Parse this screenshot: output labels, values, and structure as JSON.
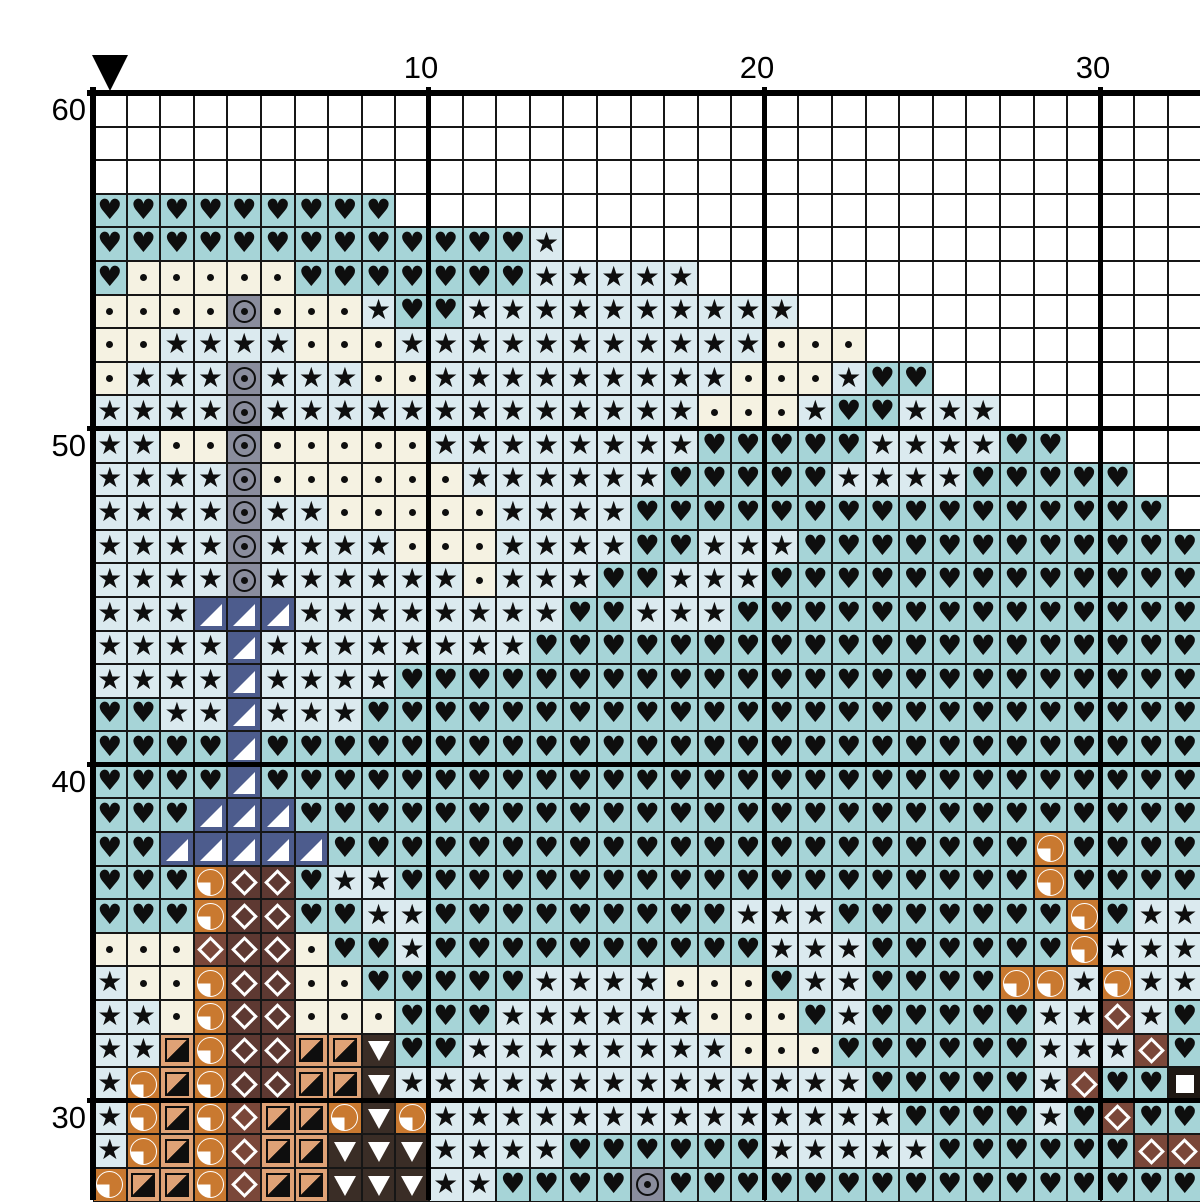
{
  "pattern": {
    "title": "cross-stitch pattern chart (cropped view)",
    "marker": {
      "glyph": "black-down-triangle",
      "column": 1
    },
    "ruler": {
      "top_labels": [
        {
          "text": "10",
          "boundary": 10
        },
        {
          "text": "20",
          "boundary": 20
        },
        {
          "text": "30",
          "boundary": 30
        }
      ],
      "left_labels": [
        {
          "text": "60",
          "row": 1
        },
        {
          "text": "50",
          "row": 11
        },
        {
          "text": "40",
          "row": 21
        },
        {
          "text": "30",
          "row": 31
        }
      ]
    },
    "legend": {
      ".": {
        "name": "empty",
        "bg": "#ffffff",
        "glyph": ""
      },
      "H": {
        "name": "heart",
        "bg": "#a6d4d7",
        "glyph": "♥",
        "glyph_color": "#0e0e0e"
      },
      "S": {
        "name": "star",
        "bg": "#dbeaef",
        "glyph": "★",
        "glyph_color": "#0e0e0e"
      },
      "d": {
        "name": "dot",
        "bg": "#f5f2e2",
        "glyph": "•",
        "glyph_color": "#0e0e0e"
      },
      "O": {
        "name": "circled-dot",
        "bg": "#8a8d9d",
        "glyph": "⊙",
        "glyph_color": "#0e0e0e"
      },
      "T": {
        "name": "white-corner-triangle",
        "bg": "#4d5c8d",
        "glyph": "◢",
        "glyph_color": "#ffffff"
      },
      "Q": {
        "name": "quarter-circle",
        "bg": "#c97930",
        "glyph": "◔",
        "glyph_color": "#ffffff"
      },
      "D": {
        "name": "open-diamond",
        "bg": "#5e3932",
        "glyph": "◇",
        "glyph_color": "#ffffff"
      },
      "R": {
        "name": "open-diamond-red",
        "bg": "#7a4739",
        "glyph": "◇",
        "glyph_color": "#ffffff"
      },
      "P": {
        "name": "half-black-square",
        "bg": "#dfa276",
        "glyph": "◪",
        "glyph_color": "#0e0e0e"
      },
      "V": {
        "name": "down-triangle",
        "bg": "#3a2d26",
        "glyph": "▼",
        "glyph_color": "#ffffff"
      },
      "W": {
        "name": "white-square",
        "bg": "#1f1813",
        "glyph": "■",
        "glyph_color": "#ffffff"
      }
    },
    "grid": {
      "columns": 33,
      "rows": 33,
      "bold_line_every": 10,
      "top_row_number": 60,
      "cells": [
        ".................................",
        ".................................",
        ".................................",
        "HHHHHHHHH........................",
        "HHHHHHHHHHHHHS...................",
        "HdddddHHHHHHHSSSSS...............",
        "ddddOdddSHHSSSSSSSSSS............",
        "ddSSSSdddSSSSSSSSSSSddd..........",
        "dSSSOSSSddSSSSSSSSSdddSHH........",
        "SSSSOSSSSSSSSSSSSSdddSHHSSS......",
        "SSddOdddddSSSSSSSSHHHHHSSSSHH....",
        "SSSSOddddddSSSSSSHHHHHSSSSHHHHH..",
        "SSSSOSSdddddSSSSHHHHHHHHHHHHHHHH.",
        "SSSSOSSSSdddSSSSHHSSSHHHHHHHHHHHH",
        "SSSSOSSSSSSdSSSHHSSSHHHHHHHHHHHHH",
        "SSSTTTSSSSSSSSHHSSSHHHHHHHHHHHHHH",
        "SSSSTSSSSSSSSHHHHHHHHHHHHHHHHHHHH",
        "SSSSTSSSSHHHHHHHHHHHHHHHHHHHHHHHH",
        "HHSSTSSSHHHHHHHHHHHHHHHHHHHHHHHHH",
        "HHHHTHHHHHHHHHHHHHHHHHHHHHHHHHHHH",
        "HHHHTHHHHHHHHHHHHHHHHHHHHHHHHHHHH",
        "HHHTTTHHHHHHHHHHHHHHHHHHHHHHHHHHH",
        "HHTTTTTHHHHHHHHHHHHHHHHHHHHHQHHHH",
        "HHHQDDHSSHHHHHHHHHHHHHHHHHHHQHHHH",
        "HHHQDDHHSSHHHHHHHHHSSSHHHHHHHQHSS",
        "dddRDDdHHSHHHHHHHHHHSSSHHHHHHQSSS",
        "SddQDDddHHHHHSSSSdddHSSHHHHQQSQSS",
        "SSdQDDdddHHHSSSSSSdddHSHHHHHSSRSH",
        "SSPQDDPPVHHSSSSSSSSdddHHHHHHSSSRH",
        "SQPQDDPPVSSSSSSSSSSSSSSHHHHHSRHHW",
        "SQPQRPPQVQSSSSSSSSSSSSSSHHHHSHRHH",
        "SQPQRPPVVVSSSSHHHHHHSSSSSHHHHHHRR",
        "QPPQRPPVVVSSHHHHOHHHHHHHHHHHHHHHH"
      ]
    }
  }
}
